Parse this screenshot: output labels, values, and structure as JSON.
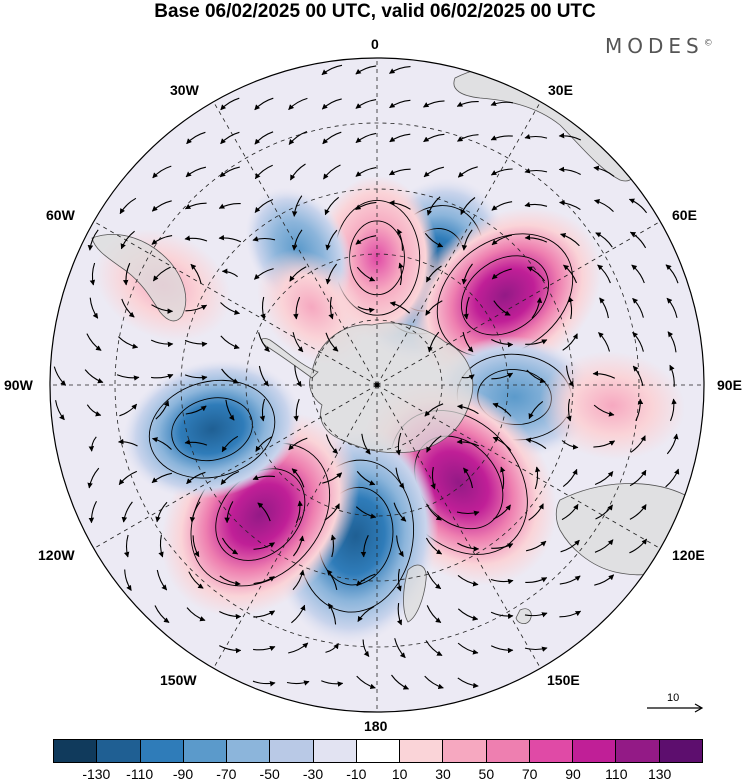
{
  "title": "Base 06/02/2025 00 UTC, valid 06/02/2025 00 UTC",
  "brand": "MODES",
  "brand_mark": "©",
  "longitude_labels": {
    "lon_0": "0",
    "lon_30E": "30E",
    "lon_60E": "60E",
    "lon_90E": "90E",
    "lon_120E": "120E",
    "lon_150E": "150E",
    "lon_180": "180",
    "lon_150W": "150W",
    "lon_120W": "120W",
    "lon_90W": "90W",
    "lon_60W": "60W",
    "lon_30W": "30W"
  },
  "colorbar": {
    "colors": [
      "#103a5c",
      "#1f5f93",
      "#2f7cb9",
      "#5b9acb",
      "#8cb5db",
      "#b9c9e6",
      "#e2e3f2",
      "#ffffff",
      "#fad4d8",
      "#f6a8c0",
      "#ee7fb0",
      "#e04aa6",
      "#c01f97",
      "#931a86",
      "#5d0e6e"
    ],
    "ticks": [
      "-130",
      "-110",
      "-90",
      "-70",
      "-50",
      "-30",
      "-10",
      "10",
      "30",
      "50",
      "70",
      "90",
      "110",
      "130"
    ]
  },
  "reference_vector": {
    "label": "10"
  },
  "anomaly_centers": [
    {
      "lon": 25,
      "lat": -55,
      "value": -90
    },
    {
      "lon": 0,
      "lat": -55,
      "value": 60
    },
    {
      "lon": 55,
      "lat": -47,
      "value": 110
    },
    {
      "lon": 95,
      "lat": -52,
      "value": -60
    },
    {
      "lon": 95,
      "lat": -25,
      "value": 40
    },
    {
      "lon": 140,
      "lat": -55,
      "value": 130
    },
    {
      "lon": -172,
      "lat": -48,
      "value": -120
    },
    {
      "lon": -138,
      "lat": -42,
      "value": 130
    },
    {
      "lon": -105,
      "lat": -43,
      "value": -80
    },
    {
      "lon": -65,
      "lat": -25,
      "value": 35
    },
    {
      "lon": -30,
      "lat": -47,
      "value": -25
    },
    {
      "lon": -40,
      "lat": -62,
      "value": 20
    }
  ]
}
